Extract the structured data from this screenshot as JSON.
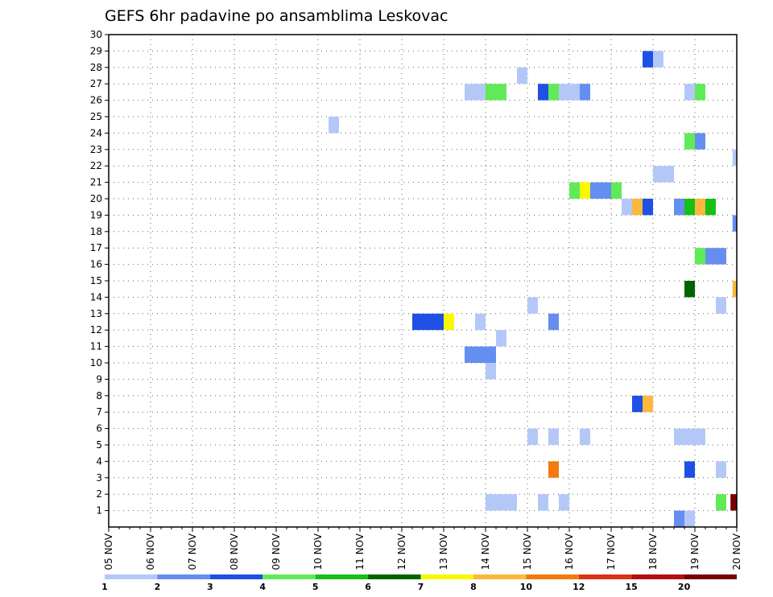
{
  "chart_data": {
    "type": "heatmap",
    "title": "GEFS 6hr padavine po ansamblima Leskovac",
    "xlabel": "",
    "ylabel": "",
    "x_tick_labels": [
      "05 NOV",
      "06 NOV",
      "07 NOV",
      "08 NOV",
      "09 NOV",
      "10 NOV",
      "11 NOV",
      "12 NOV",
      "13 NOV",
      "14 NOV",
      "15 NOV",
      "16 NOV",
      "17 NOV",
      "18 NOV",
      "19 NOV",
      "20 NOV"
    ],
    "x_range_days": [
      0,
      15
    ],
    "x_step_days": 0.25,
    "y_tick_labels": [
      "1",
      "2",
      "3",
      "4",
      "5",
      "6",
      "7",
      "8",
      "9",
      "10",
      "11",
      "12",
      "13",
      "14",
      "15",
      "16",
      "17",
      "18",
      "19",
      "20",
      "21",
      "22",
      "23",
      "24",
      "25",
      "26",
      "27",
      "28",
      "29",
      "30"
    ],
    "y_range": [
      0,
      30
    ],
    "grid": true,
    "legend": {
      "placement": "bottom",
      "labels": [
        "1",
        "2",
        "3",
        "4",
        "5",
        "6",
        "7",
        "8",
        "10",
        "12",
        "15",
        "20"
      ],
      "colors": [
        "#b4c8f8",
        "#648ef0",
        "#1e50e6",
        "#60ea58",
        "#16c016",
        "#006400",
        "#f8f800",
        "#fab83c",
        "#f37a0c",
        "#dc3214",
        "#b40f0f",
        "#780000"
      ]
    },
    "cells": [
      {
        "member": 29,
        "x": 12.75,
        "w": 0.25,
        "color": "#1e50e6"
      },
      {
        "member": 29,
        "x": 13.0,
        "w": 0.25,
        "color": "#b4c8f8"
      },
      {
        "member": 28,
        "x": 9.75,
        "w": 0.25,
        "color": "#b4c8f8"
      },
      {
        "member": 27,
        "x": 8.5,
        "w": 0.5,
        "color": "#b4c8f8"
      },
      {
        "member": 27,
        "x": 9.0,
        "w": 0.5,
        "color": "#60ea58"
      },
      {
        "member": 27,
        "x": 10.25,
        "w": 0.25,
        "color": "#1e50e6"
      },
      {
        "member": 27,
        "x": 10.5,
        "w": 0.25,
        "color": "#60ea58"
      },
      {
        "member": 27,
        "x": 10.75,
        "w": 0.5,
        "color": "#b4c8f8"
      },
      {
        "member": 27,
        "x": 11.25,
        "w": 0.25,
        "color": "#648ef0"
      },
      {
        "member": 27,
        "x": 13.75,
        "w": 0.25,
        "color": "#b4c8f8"
      },
      {
        "member": 27,
        "x": 14.0,
        "w": 0.25,
        "color": "#60ea58"
      },
      {
        "member": 25,
        "x": 5.25,
        "w": 0.25,
        "color": "#b4c8f8"
      },
      {
        "member": 24,
        "x": 13.75,
        "w": 0.25,
        "color": "#60ea58"
      },
      {
        "member": 24,
        "x": 14.0,
        "w": 0.25,
        "color": "#648ef0"
      },
      {
        "member": 23,
        "x": 14.9,
        "w": 0.1,
        "color": "#b4c8f8"
      },
      {
        "member": 22,
        "x": 13.0,
        "w": 0.5,
        "color": "#b4c8f8"
      },
      {
        "member": 21,
        "x": 11.0,
        "w": 0.25,
        "color": "#60ea58"
      },
      {
        "member": 21,
        "x": 11.25,
        "w": 0.25,
        "color": "#f8f800"
      },
      {
        "member": 21,
        "x": 11.5,
        "w": 0.5,
        "color": "#648ef0"
      },
      {
        "member": 21,
        "x": 12.0,
        "w": 0.25,
        "color": "#60ea58"
      },
      {
        "member": 20,
        "x": 12.25,
        "w": 0.25,
        "color": "#b4c8f8"
      },
      {
        "member": 20,
        "x": 12.5,
        "w": 0.25,
        "color": "#fab83c"
      },
      {
        "member": 20,
        "x": 12.75,
        "w": 0.25,
        "color": "#1e50e6"
      },
      {
        "member": 20,
        "x": 13.5,
        "w": 0.25,
        "color": "#648ef0"
      },
      {
        "member": 20,
        "x": 13.75,
        "w": 0.25,
        "color": "#16c016"
      },
      {
        "member": 20,
        "x": 14.0,
        "w": 0.25,
        "color": "#fab83c"
      },
      {
        "member": 20,
        "x": 14.25,
        "w": 0.25,
        "color": "#16c016"
      },
      {
        "member": 19,
        "x": 14.9,
        "w": 0.1,
        "color": "#648ef0"
      },
      {
        "member": 17,
        "x": 14.0,
        "w": 0.25,
        "color": "#60ea58"
      },
      {
        "member": 17,
        "x": 14.25,
        "w": 0.5,
        "color": "#648ef0"
      },
      {
        "member": 15,
        "x": 13.75,
        "w": 0.25,
        "color": "#006400"
      },
      {
        "member": 15,
        "x": 14.9,
        "w": 0.1,
        "color": "#fab83c"
      },
      {
        "member": 14,
        "x": 10.0,
        "w": 0.25,
        "color": "#b4c8f8"
      },
      {
        "member": 14,
        "x": 14.5,
        "w": 0.25,
        "color": "#b4c8f8"
      },
      {
        "member": 13,
        "x": 7.25,
        "w": 0.75,
        "color": "#1e50e6"
      },
      {
        "member": 13,
        "x": 8.0,
        "w": 0.25,
        "color": "#f8f800"
      },
      {
        "member": 13,
        "x": 8.75,
        "w": 0.25,
        "color": "#b4c8f8"
      },
      {
        "member": 13,
        "x": 10.5,
        "w": 0.25,
        "color": "#648ef0"
      },
      {
        "member": 12,
        "x": 9.25,
        "w": 0.25,
        "color": "#b4c8f8"
      },
      {
        "member": 11,
        "x": 8.5,
        "w": 0.75,
        "color": "#648ef0"
      },
      {
        "member": 10,
        "x": 9.0,
        "w": 0.25,
        "color": "#b4c8f8"
      },
      {
        "member": 8,
        "x": 12.5,
        "w": 0.25,
        "color": "#1e50e6"
      },
      {
        "member": 8,
        "x": 12.75,
        "w": 0.25,
        "color": "#fab83c"
      },
      {
        "member": 6,
        "x": 10.0,
        "w": 0.25,
        "color": "#b4c8f8"
      },
      {
        "member": 6,
        "x": 10.5,
        "w": 0.25,
        "color": "#b4c8f8"
      },
      {
        "member": 6,
        "x": 11.25,
        "w": 0.25,
        "color": "#b4c8f8"
      },
      {
        "member": 6,
        "x": 13.5,
        "w": 0.75,
        "color": "#b4c8f8"
      },
      {
        "member": 4,
        "x": 10.5,
        "w": 0.25,
        "color": "#f37a0c"
      },
      {
        "member": 4,
        "x": 13.75,
        "w": 0.25,
        "color": "#1e50e6"
      },
      {
        "member": 4,
        "x": 14.5,
        "w": 0.25,
        "color": "#b4c8f8"
      },
      {
        "member": 2,
        "x": 9.0,
        "w": 0.75,
        "color": "#b4c8f8"
      },
      {
        "member": 2,
        "x": 10.25,
        "w": 0.25,
        "color": "#b4c8f8"
      },
      {
        "member": 2,
        "x": 10.75,
        "w": 0.25,
        "color": "#b4c8f8"
      },
      {
        "member": 2,
        "x": 14.5,
        "w": 0.25,
        "color": "#60ea58"
      },
      {
        "member": 2,
        "x": 14.85,
        "w": 0.15,
        "color": "#780000"
      },
      {
        "member": 1,
        "x": 13.5,
        "w": 0.25,
        "color": "#648ef0"
      },
      {
        "member": 1,
        "x": 13.75,
        "w": 0.25,
        "color": "#b4c8f8"
      }
    ]
  }
}
